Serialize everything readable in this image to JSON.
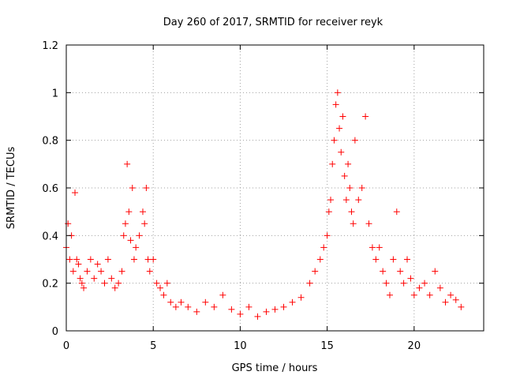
{
  "chart_data": {
    "type": "scatter",
    "title": "Day 260 of 2017, SRMTID for receiver reyk",
    "xlabel": "GPS time / hours",
    "ylabel": "SRMTID / TECUs",
    "xlim": [
      0,
      24
    ],
    "ylim": [
      0,
      1.2
    ],
    "xticks": [
      0,
      5,
      10,
      15,
      20
    ],
    "yticks": [
      0,
      0.2,
      0.4,
      0.6,
      0.8,
      1,
      1.2
    ],
    "xtick_labels": [
      "0",
      "5",
      "10",
      "15",
      "20"
    ],
    "ytick_labels": [
      "0",
      "0.2",
      "0.4",
      "0.6",
      "0.8",
      "1",
      "1.2"
    ],
    "grid": true,
    "marker": "+",
    "color": "#ff0000",
    "series": [
      {
        "name": "SRMTID",
        "x": [
          0.0,
          0.1,
          0.2,
          0.3,
          0.4,
          0.5,
          0.6,
          0.7,
          0.8,
          0.9,
          1.0,
          1.2,
          1.4,
          1.6,
          1.8,
          2.0,
          2.2,
          2.4,
          2.6,
          2.8,
          3.0,
          3.2,
          3.3,
          3.4,
          3.5,
          3.6,
          3.7,
          3.8,
          3.9,
          4.0,
          4.2,
          4.4,
          4.5,
          4.6,
          4.7,
          4.8,
          5.0,
          5.2,
          5.4,
          5.6,
          5.8,
          6.0,
          6.3,
          6.6,
          7.0,
          7.5,
          8.0,
          8.5,
          9.0,
          9.5,
          10.0,
          10.5,
          11.0,
          11.5,
          12.0,
          12.5,
          13.0,
          13.5,
          14.0,
          14.3,
          14.6,
          14.8,
          15.0,
          15.1,
          15.2,
          15.3,
          15.4,
          15.5,
          15.6,
          15.7,
          15.8,
          15.9,
          16.0,
          16.1,
          16.2,
          16.3,
          16.4,
          16.5,
          16.6,
          16.8,
          17.0,
          17.2,
          17.4,
          17.6,
          17.8,
          18.0,
          18.2,
          18.4,
          18.6,
          18.8,
          19.0,
          19.2,
          19.4,
          19.6,
          19.8,
          20.0,
          20.3,
          20.6,
          20.9,
          21.2,
          21.5,
          21.8,
          22.1,
          22.4,
          22.7
        ],
        "y": [
          0.35,
          0.45,
          0.3,
          0.4,
          0.25,
          0.58,
          0.3,
          0.28,
          0.22,
          0.2,
          0.18,
          0.25,
          0.3,
          0.22,
          0.28,
          0.25,
          0.2,
          0.3,
          0.22,
          0.18,
          0.2,
          0.25,
          0.4,
          0.45,
          0.7,
          0.5,
          0.38,
          0.6,
          0.3,
          0.35,
          0.4,
          0.5,
          0.45,
          0.6,
          0.3,
          0.25,
          0.3,
          0.2,
          0.18,
          0.15,
          0.2,
          0.12,
          0.1,
          0.12,
          0.1,
          0.08,
          0.12,
          0.1,
          0.15,
          0.09,
          0.07,
          0.1,
          0.06,
          0.08,
          0.09,
          0.1,
          0.12,
          0.14,
          0.2,
          0.25,
          0.3,
          0.35,
          0.4,
          0.5,
          0.55,
          0.7,
          0.8,
          0.95,
          1.0,
          0.85,
          0.75,
          0.9,
          0.65,
          0.55,
          0.7,
          0.6,
          0.5,
          0.45,
          0.8,
          0.55,
          0.6,
          0.9,
          0.45,
          0.35,
          0.3,
          0.35,
          0.25,
          0.2,
          0.15,
          0.3,
          0.5,
          0.25,
          0.2,
          0.3,
          0.22,
          0.15,
          0.18,
          0.2,
          0.15,
          0.25,
          0.18,
          0.12,
          0.15,
          0.13,
          0.1
        ]
      }
    ]
  }
}
